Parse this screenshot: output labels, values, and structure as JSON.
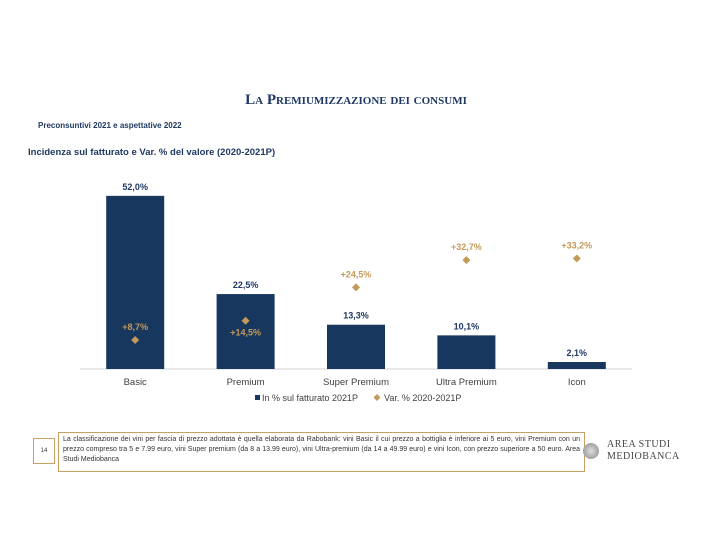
{
  "header": {
    "title": "La Premiumizzazione dei consumi",
    "subtitle": "Preconsuntivi 2021 e aspettative 2022"
  },
  "chart_data": {
    "type": "bar",
    "title": "Incidenza sul fatturato e Var. % del valore (2020-2021P)",
    "categories": [
      "Basic",
      "Premium",
      "Super Premium",
      "Ultra Premium",
      "Icon"
    ],
    "series": [
      {
        "name": "In % sul fatturato 2021P",
        "type": "bar",
        "values": [
          52.0,
          22.5,
          13.3,
          10.1,
          2.1
        ],
        "labels": [
          "52,0%",
          "22,5%",
          "13,3%",
          "10,1%",
          "2,1%"
        ],
        "color": "#17375e"
      },
      {
        "name": "Var. % 2020-2021P",
        "type": "scatter",
        "marker": "diamond",
        "values": [
          8.7,
          14.5,
          24.5,
          32.7,
          33.2
        ],
        "labels": [
          "+8,7%",
          "+14,5%",
          "+24,5%",
          "+32,7%",
          "+33,2%"
        ],
        "color": "#c49a5a"
      }
    ],
    "ylim": [
      0,
      60
    ],
    "grid": false,
    "legend": "bottom"
  },
  "footer": {
    "page_number": "14",
    "note": "La classificazione dei vini per fascia di prezzo adottata è quella elaborata da Rabobank: vini Basic il cui prezzo a bottiglia è inferiore ai 5 euro, vini Premium con un prezzo compreso tra 5 e 7.99 euro, vini Super premium (da 8 a 13.99 euro), vini Ultra-premium (da 14 a 49.99 euro) e vini Icon, con prezzo superiore a 50 euro. Area Studi Mediobanca",
    "logo_line1": "AREA STUDI",
    "logo_line2": "MEDIOBANCA"
  }
}
